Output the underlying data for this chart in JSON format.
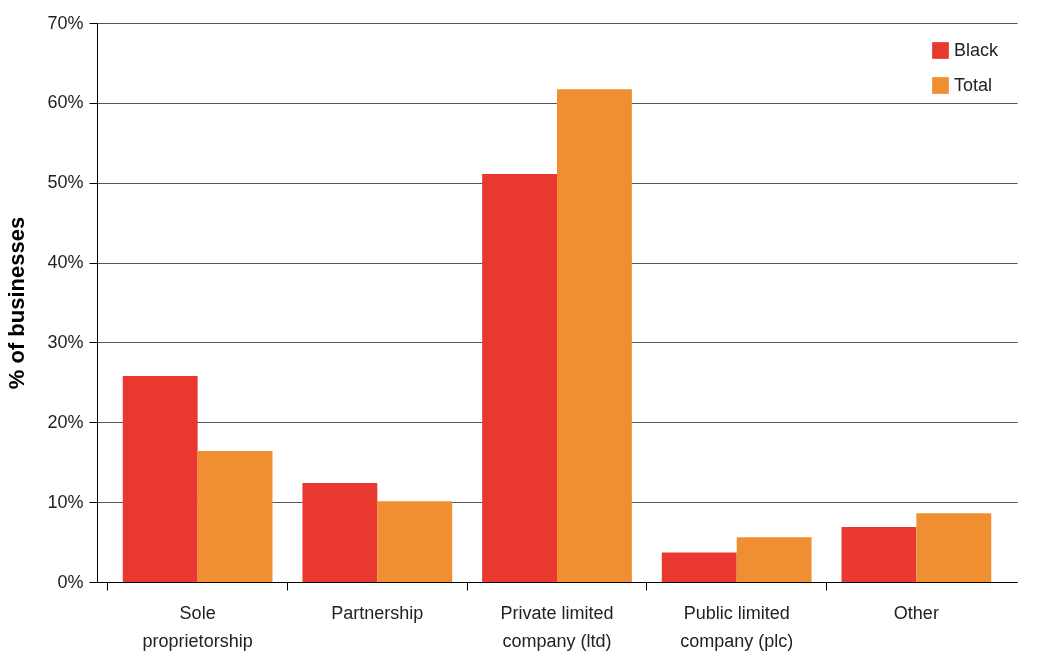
{
  "chart_data": {
    "type": "bar",
    "ylabel": "% of businesses",
    "categories": [
      "Sole proprietorship",
      "Partnership",
      "Private limited company (ltd)",
      "Public limited company (plc)",
      "Other"
    ],
    "series": [
      {
        "name": "Black",
        "color": "#e8382f",
        "values": [
          25.8,
          12.4,
          51.1,
          3.7,
          6.9
        ]
      },
      {
        "name": "Total",
        "color": "#ef8f32",
        "values": [
          16.4,
          10.1,
          61.7,
          5.6,
          8.6
        ]
      }
    ],
    "ylim": [
      0,
      70
    ],
    "yticks": [
      {
        "value": 0,
        "label": "0%"
      },
      {
        "value": 10,
        "label": "10%"
      },
      {
        "value": 20,
        "label": "20%"
      },
      {
        "value": 30,
        "label": "30%"
      },
      {
        "value": 40,
        "label": "40%"
      },
      {
        "value": 50,
        "label": "50%"
      },
      {
        "value": 60,
        "label": "60%"
      },
      {
        "value": 70,
        "label": "70%"
      }
    ],
    "grid": "y",
    "legend": "top right"
  }
}
